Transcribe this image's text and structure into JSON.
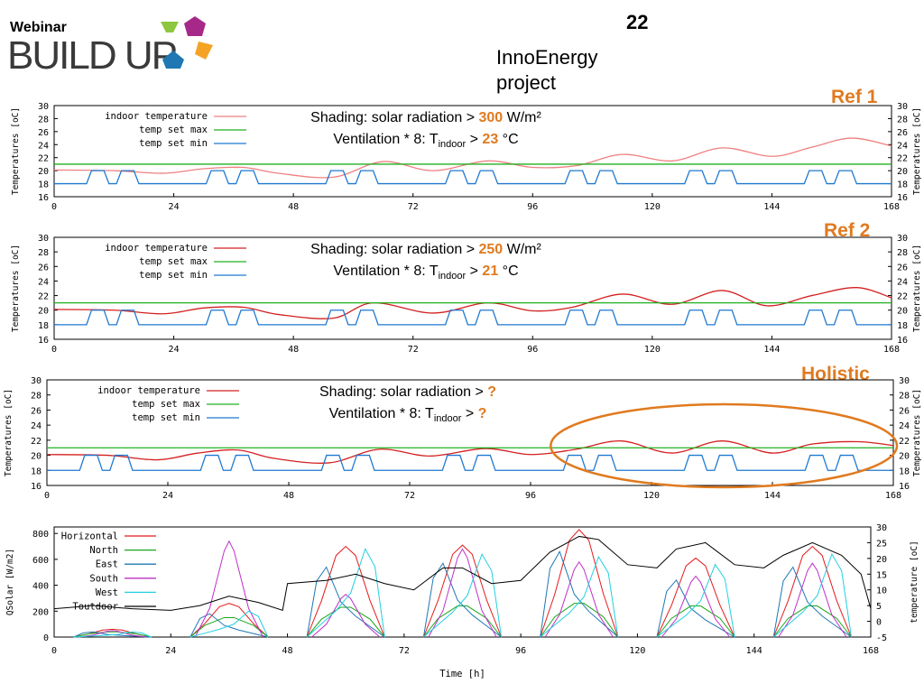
{
  "header": {
    "logo_small": "Webinar",
    "logo_main": "BUILD UP",
    "slide_number": "22",
    "project": "InnoEnergy project"
  },
  "colors": {
    "accent_orange": "#e07a1f",
    "indoor_pale": "#f08080",
    "indoor": "#d42020",
    "max": "#20b020",
    "min": "#1f78d1"
  },
  "chart_data": [
    {
      "type": "line",
      "tag": "Ref 1",
      "ylabel": "Temperatures [oC]",
      "ylim": [
        16,
        30
      ],
      "yticks": [
        16,
        18,
        20,
        22,
        24,
        26,
        28,
        30
      ],
      "xlim": [
        0,
        168
      ],
      "xticks": [
        0,
        24,
        48,
        72,
        96,
        120,
        144,
        168
      ],
      "legend": [
        "indoor temperature",
        "temp set max",
        "temp set min"
      ],
      "caption": {
        "line1_pre": "Shading: solar radiation > ",
        "line1_val": "300",
        "line1_post": " W/m²",
        "line2_pre": "Ventilation * 8:  T",
        "line2_sub": "indoor",
        "line2_mid": " > ",
        "line2_val": "23",
        "line2_post": " °C"
      },
      "series": [
        {
          "name": "indoor temperature",
          "x": [
            0,
            12,
            22,
            30,
            38,
            45,
            56,
            66,
            76,
            87,
            96,
            105,
            114,
            124,
            134,
            144,
            152,
            160,
            168
          ],
          "y": [
            20.1,
            20.0,
            19.6,
            20.3,
            20.5,
            19.6,
            19.0,
            21.4,
            20.0,
            21.5,
            20.5,
            20.8,
            22.5,
            21.5,
            23.5,
            22.2,
            23.6,
            25.0,
            23.8
          ]
        },
        {
          "name": "temp set max",
          "x": [
            0,
            168
          ],
          "y": [
            21,
            21
          ]
        },
        {
          "name": "temp set min",
          "daily_pattern": true
        }
      ]
    },
    {
      "type": "line",
      "tag": "Ref 2",
      "ylabel": "Temperatures [oC]",
      "ylim": [
        16,
        30
      ],
      "yticks": [
        16,
        18,
        20,
        22,
        24,
        26,
        28,
        30
      ],
      "xlim": [
        0,
        168
      ],
      "xticks": [
        0,
        24,
        48,
        72,
        96,
        120,
        144,
        168
      ],
      "legend": [
        "indoor temperature",
        "temp set max",
        "temp set min"
      ],
      "caption": {
        "line1_pre": "Shading: solar radiation > ",
        "line1_val": "250",
        "line1_post": " W/m²",
        "line2_pre": "Ventilation * 8:  T",
        "line2_sub": "indoor",
        "line2_mid": " > ",
        "line2_val": "21",
        "line2_post": " °C"
      },
      "series": [
        {
          "name": "indoor temperature",
          "x": [
            0,
            12,
            22,
            30,
            38,
            45,
            56,
            64,
            76,
            87,
            96,
            104,
            114,
            124,
            134,
            143,
            152,
            161,
            168
          ],
          "y": [
            20.1,
            20.0,
            19.5,
            20.3,
            20.4,
            19.4,
            18.9,
            21.0,
            19.6,
            21.0,
            19.9,
            20.4,
            22.2,
            20.8,
            22.7,
            20.6,
            22.0,
            23.1,
            21.7
          ]
        },
        {
          "name": "temp set max",
          "x": [
            0,
            168
          ],
          "y": [
            21,
            21
          ]
        },
        {
          "name": "temp set min",
          "daily_pattern": true
        }
      ]
    },
    {
      "type": "line",
      "tag": "Holistic",
      "ylabel": "Temperatures [oC]",
      "ylim": [
        16,
        30
      ],
      "yticks": [
        16,
        18,
        20,
        22,
        24,
        26,
        28,
        30
      ],
      "xlim": [
        0,
        168
      ],
      "xticks": [
        0,
        24,
        48,
        72,
        96,
        120,
        144,
        168
      ],
      "legend": [
        "indoor temperature",
        "temp set max",
        "temp set min"
      ],
      "caption": {
        "line1_pre": "Shading: solar radiation > ",
        "line1_val": "?",
        "line1_post": "",
        "line2_pre": "Ventilation * 8:  T",
        "line2_sub": "indoor",
        "line2_mid": " > ",
        "line2_val": "?",
        "line2_post": ""
      },
      "series": [
        {
          "name": "indoor temperature",
          "x": [
            0,
            12,
            22,
            30,
            38,
            45,
            56,
            66,
            76,
            87,
            96,
            105,
            114,
            124,
            134,
            144,
            152,
            161,
            168
          ],
          "y": [
            20.1,
            20.0,
            19.4,
            20.3,
            20.7,
            19.6,
            19.0,
            20.8,
            19.9,
            20.9,
            20.1,
            20.8,
            21.9,
            20.3,
            21.9,
            20.3,
            21.5,
            21.8,
            21.3
          ]
        },
        {
          "name": "temp set max",
          "x": [
            0,
            168
          ],
          "y": [
            21,
            21
          ]
        },
        {
          "name": "temp set min",
          "daily_pattern": true
        }
      ],
      "highlight": {
        "x_from": 100,
        "x_to": 168
      }
    },
    {
      "type": "line",
      "ylabel": "QSolar [W/m2]",
      "ylabel_right": "temperature [oC]",
      "xlabel": "Time [h]",
      "ylim": [
        0,
        850
      ],
      "yticks": [
        0,
        200,
        400,
        600,
        800
      ],
      "y2lim": [
        -5,
        30
      ],
      "y2ticks": [
        -5,
        0,
        5,
        10,
        15,
        20,
        25,
        30
      ],
      "xlim": [
        0,
        168
      ],
      "xticks": [
        0,
        24,
        48,
        72,
        96,
        120,
        144,
        168
      ],
      "legend": [
        "Horizontal",
        "North",
        "East",
        "South",
        "West",
        "Toutdoor"
      ],
      "solar_peaks": {
        "day_centers": [
          12,
          36,
          60,
          84,
          108,
          132,
          156
        ],
        "Horizontal": [
          60,
          260,
          700,
          710,
          830,
          610,
          700
        ],
        "North": [
          40,
          150,
          230,
          240,
          260,
          240,
          240
        ],
        "East": [
          40,
          180,
          540,
          570,
          660,
          440,
          540
        ],
        "South": [
          50,
          740,
          330,
          680,
          580,
          470,
          570
        ],
        "West": [
          40,
          200,
          680,
          640,
          620,
          560,
          640
        ]
      },
      "series": [
        {
          "name": "Toutdoor",
          "x": [
            0,
            8,
            16,
            24,
            30,
            36,
            42,
            47,
            48,
            56,
            62,
            68,
            74,
            80,
            84,
            90,
            96,
            102,
            108,
            112,
            118,
            124,
            128,
            134,
            140,
            146,
            150,
            156,
            162,
            166,
            168
          ],
          "y": [
            4,
            5,
            4,
            3.5,
            5,
            8,
            6,
            3.5,
            12,
            13,
            15,
            12,
            10,
            17,
            17,
            12,
            13,
            22,
            27,
            26,
            18,
            17,
            23,
            25,
            18,
            17,
            21,
            25,
            21,
            15,
            4
          ]
        }
      ]
    }
  ]
}
